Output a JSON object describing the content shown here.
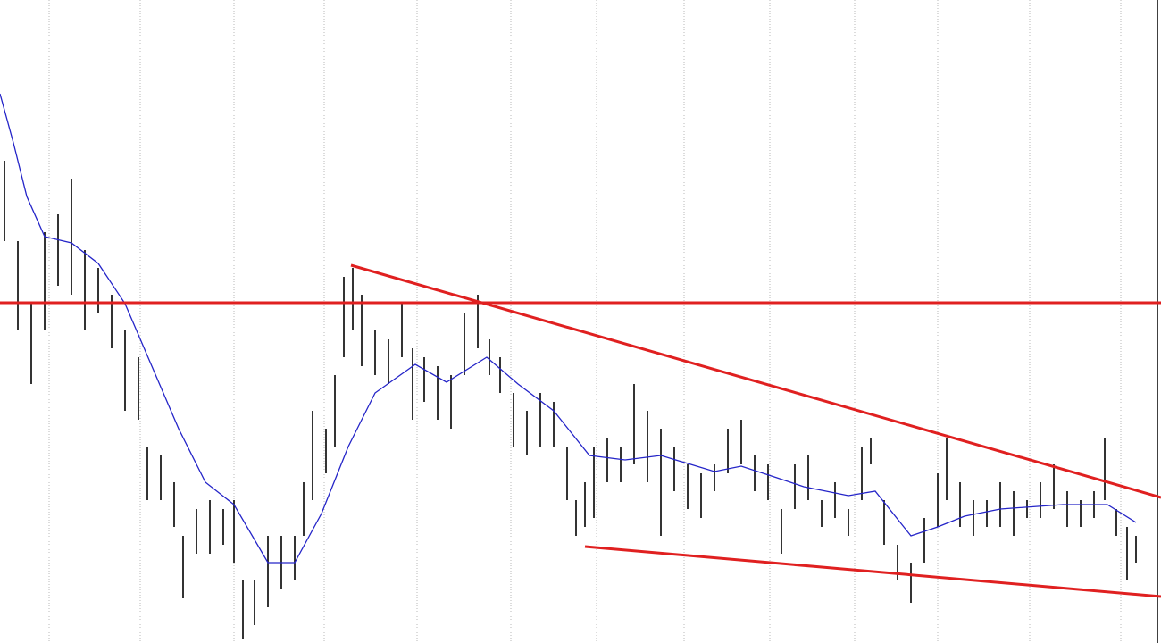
{
  "chart_data": {
    "type": "hilo",
    "xlim": [
      0,
      260
    ],
    "ylim": [
      0,
      72
    ],
    "xticks": [
      11,
      31.4,
      52.4,
      72.6,
      93.4,
      114.4,
      133.6,
      153.2,
      172.4,
      191.4,
      210,
      230.6,
      251
    ],
    "grid": true,
    "bar_color": "#000000",
    "x": [
      1,
      4,
      7,
      10,
      13,
      16,
      19,
      22,
      25,
      28,
      31,
      33,
      36,
      39,
      41,
      44,
      47,
      50,
      52.4,
      54.4,
      57,
      60,
      63,
      66,
      68,
      70,
      73,
      75,
      77,
      79,
      81,
      84,
      87,
      90,
      92.4,
      95,
      98,
      101,
      104,
      107,
      109.6,
      112,
      115,
      118,
      121,
      124,
      127,
      129,
      131,
      133,
      136,
      139,
      142,
      145,
      148,
      151,
      154,
      157,
      160,
      163,
      166,
      169,
      172,
      175,
      178,
      181,
      184,
      187,
      190,
      193,
      195,
      198,
      201,
      204,
      207,
      210,
      212,
      215,
      218,
      221,
      224,
      227,
      230,
      233,
      236,
      239,
      242,
      245,
      247.4,
      250,
      252.4,
      254.4
    ],
    "high": [
      54,
      45,
      38,
      46,
      48,
      52,
      44,
      42,
      39,
      35,
      32,
      22,
      21,
      18,
      12,
      15,
      16,
      15,
      16,
      7,
      7,
      12,
      12,
      12,
      18,
      26,
      24,
      30,
      41,
      42,
      39,
      35,
      34,
      38,
      33,
      32,
      31,
      30,
      37,
      39,
      34,
      32,
      28,
      26,
      28,
      27,
      22,
      16,
      18,
      22,
      23,
      22,
      29,
      26,
      24,
      22,
      20,
      19,
      20,
      24,
      25,
      21,
      20,
      15,
      20,
      21,
      16,
      18,
      15,
      22,
      23,
      16,
      11,
      9,
      14,
      19,
      23,
      18,
      16,
      16,
      18,
      17,
      16,
      18,
      20,
      17,
      16,
      17,
      23,
      15,
      13,
      12
    ],
    "low": [
      45,
      35,
      29,
      35,
      40,
      39,
      35,
      37,
      33,
      26,
      25,
      16,
      16,
      13,
      5,
      10,
      10,
      11,
      9,
      0.5,
      2,
      4,
      6,
      7,
      12,
      16,
      19,
      22,
      32,
      35,
      31,
      30,
      29,
      32,
      25,
      27,
      25,
      24,
      30,
      33,
      30,
      28,
      22,
      21,
      22,
      22,
      16,
      12,
      13,
      14,
      18,
      18,
      20,
      18,
      12,
      17,
      15,
      14,
      17,
      19,
      20,
      17,
      16,
      10,
      15,
      16,
      13,
      14,
      12,
      16,
      20,
      11,
      7,
      4.5,
      9,
      13,
      16,
      13,
      12,
      13,
      13,
      12,
      14,
      14,
      15,
      13,
      13,
      14,
      16,
      12,
      7,
      9
    ],
    "moving_average": {
      "color": "#2424c8",
      "x": [
        0,
        3,
        6,
        10,
        16,
        22,
        28,
        34,
        40,
        46,
        52.4,
        60,
        66,
        72,
        78,
        84,
        93,
        100,
        109,
        116,
        124,
        132,
        140,
        148,
        160,
        166,
        174,
        180,
        190,
        196,
        204,
        210,
        216,
        224,
        238,
        248,
        254.4
      ],
      "values": [
        61.5,
        56,
        50,
        45.5,
        44.8,
        42.5,
        38,
        31,
        24,
        18,
        15.5,
        9,
        9,
        14.5,
        22,
        28,
        31.2,
        29.2,
        32,
        29,
        26,
        21,
        20.5,
        21,
        19.2,
        19.8,
        18.5,
        17.5,
        16.5,
        17,
        12,
        13,
        14.2,
        15,
        15.5,
        15.5,
        13.5
      ]
    },
    "lines": [
      {
        "color": "#e02020",
        "x": [
          0,
          260
        ],
        "y": [
          38.1,
          38.1
        ]
      },
      {
        "color": "#e02020",
        "x": [
          78.6,
          260
        ],
        "y": [
          42.3,
          16.3
        ]
      },
      {
        "color": "#e02020",
        "x": [
          131,
          260
        ],
        "y": [
          10.8,
          5.2
        ]
      }
    ]
  }
}
